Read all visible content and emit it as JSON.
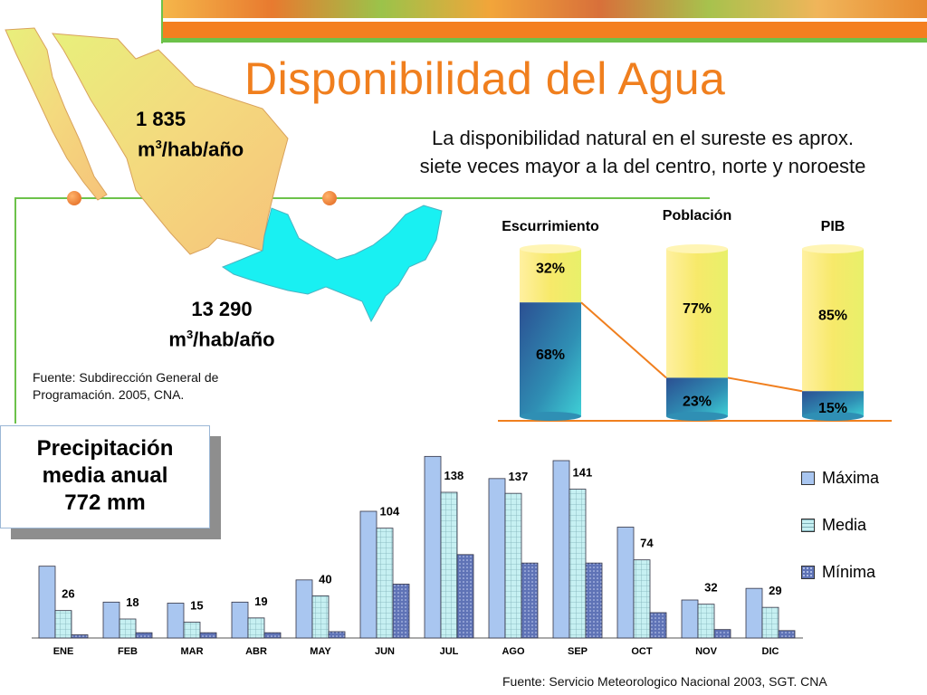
{
  "title": "Disponibilidad del Agua",
  "subtitle_line1": "La disponibilidad natural en el sureste es aprox.",
  "subtitle_line2": "siete veces mayor a la del centro, norte y noroeste",
  "map": {
    "north_value": "1 835",
    "south_value": "13 290",
    "unit_prefix": "m",
    "unit_sup": "3",
    "unit_suffix": "/hab/año",
    "colors": {
      "north": "#f3d97a",
      "south": "#19f0f2",
      "border": "#d9a25c"
    }
  },
  "source_1": "Fuente: Subdirección General de Programación. 2005, CNA.",
  "source_2": "Fuente: Servicio Meteorologico Nacional 2003, SGT. CNA",
  "precip_box": {
    "line1": "Precipitación",
    "line2": "media anual",
    "line3": "772 mm"
  },
  "colors": {
    "accent": "#f07f1e",
    "green_rule": "#6cc24a",
    "series_max": "#a9c6f0",
    "series_media": "#c6f0f2",
    "series_min": "#5f73b6",
    "cyl_top": "#f7e96a",
    "cyl_bottom": "#2a7fa8"
  },
  "chart_data": [
    {
      "type": "bar",
      "subtype": "stacked-cylinder",
      "categories": [
        "Escurrimiento",
        "Población",
        "PIB"
      ],
      "series": [
        {
          "name": "",
          "values": [
            68,
            23,
            15
          ],
          "labels": [
            "68%",
            "23%",
            "15%"
          ]
        },
        {
          "name": "",
          "values": [
            32,
            77,
            85
          ],
          "labels": [
            "32%",
            "77%",
            "85%"
          ]
        }
      ],
      "ylim": [
        0,
        100
      ]
    },
    {
      "type": "bar",
      "categories": [
        "ENE",
        "FEB",
        "MAR",
        "ABR",
        "MAY",
        "JUN",
        "JUL",
        "AGO",
        "SEP",
        "OCT",
        "NOV",
        "DIC"
      ],
      "series": [
        {
          "name": "Máxima",
          "values": [
            68,
            34,
            33,
            34,
            55,
            120,
            172,
            151,
            168,
            105,
            36,
            47
          ]
        },
        {
          "name": "Media",
          "values": [
            26,
            18,
            15,
            19,
            40,
            104,
            138,
            137,
            141,
            74,
            32,
            29
          ],
          "labels": [
            "26",
            "18",
            "15",
            "19",
            "40",
            "104",
            "138",
            "137",
            "141",
            "74",
            "32",
            "29"
          ]
        },
        {
          "name": "Mínima",
          "values": [
            3,
            5,
            5,
            5,
            6,
            51,
            79,
            71,
            71,
            24,
            8,
            7
          ]
        }
      ],
      "ylim": [
        0,
        180
      ],
      "legend": "right"
    }
  ]
}
